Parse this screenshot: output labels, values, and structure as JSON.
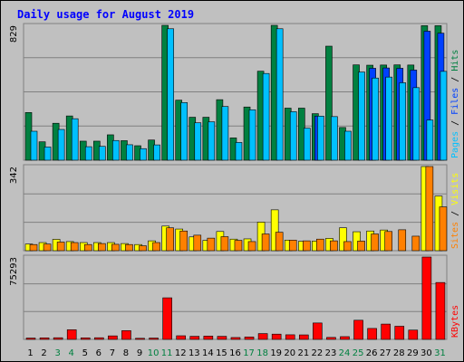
{
  "chart_data": {
    "type": "bar",
    "title": "Daily usage for August 2019",
    "categories": [
      "1",
      "2",
      "3",
      "4",
      "5",
      "6",
      "7",
      "8",
      "9",
      "10",
      "11",
      "12",
      "13",
      "14",
      "15",
      "16",
      "17",
      "18",
      "19",
      "20",
      "21",
      "22",
      "23",
      "24",
      "25",
      "26",
      "27",
      "28",
      "29",
      "30",
      "31"
    ],
    "weekend_days": [
      3,
      4,
      10,
      11,
      17,
      18,
      24,
      25,
      31
    ],
    "panels": [
      {
        "name": "hits-files-pages",
        "ymax_label": "829",
        "ymax": 829,
        "series": [
          {
            "name": "Hits",
            "color": "#008040",
            "values": [
              293,
              113,
              227,
              272,
              117,
              117,
              156,
              120,
              89,
              124,
              829,
              369,
              264,
              264,
              372,
              137,
              327,
              547,
              829,
              320,
              320,
              286,
              701,
              201,
              586,
              584,
              585,
              586,
              585,
              827,
              827
            ]
          },
          {
            "name": "Files",
            "color": "#0040ff",
            "values": [
              0,
              0,
              0,
              0,
              0,
              0,
              0,
              0,
              0,
              0,
              0,
              0,
              0,
              0,
              0,
              0,
              0,
              0,
              0,
              0,
              0,
              271,
              0,
              0,
              0,
              565,
              567,
              565,
              554,
              793,
              781
            ]
          },
          {
            "name": "Pages",
            "color": "#00c0ff",
            "values": [
              178,
              81,
              189,
              255,
              83,
              85,
              121,
              95,
              71,
              94,
              808,
              354,
              230,
              236,
              330,
              109,
              310,
              533,
              808,
              298,
              197,
              271,
              268,
              178,
              542,
              505,
              511,
              476,
              446,
              247,
              546
            ]
          }
        ],
        "axis_labels": [
          {
            "text": "Pages",
            "color": "#00c0ff"
          },
          {
            "text": " / ",
            "color": "#000000"
          },
          {
            "text": "Files",
            "color": "#0040ff"
          },
          {
            "text": " / ",
            "color": "#000000"
          },
          {
            "text": "Hits",
            "color": "#008040"
          }
        ]
      },
      {
        "name": "visits-sites",
        "ymax_label": "342",
        "ymax": 342,
        "series": [
          {
            "name": "Visits",
            "color": "#ffff00",
            "values": [
              27,
              33,
              46,
              37,
              33,
              33,
              33,
              29,
              25,
              40,
              100,
              88,
              56,
              42,
              78,
              47,
              48,
              116,
              166,
              43,
              38,
              39,
              50,
              93,
              77,
              80,
              84,
              0,
              0,
              342,
              222
            ]
          },
          {
            "name": "Sites",
            "color": "#ff8000",
            "values": [
              25,
              27,
              35,
              33,
              25,
              29,
              26,
              25,
              20,
              33,
              93,
              80,
              63,
              51,
              57,
              42,
              37,
              68,
              75,
              43,
              40,
              47,
              40,
              37,
              39,
              68,
              78,
              85,
              59,
              342,
              178
            ]
          }
        ],
        "axis_labels": [
          {
            "text": "Sites",
            "color": "#ff8000"
          },
          {
            "text": " / ",
            "color": "#000000"
          },
          {
            "text": "Visits",
            "color": "#ffff00"
          }
        ]
      },
      {
        "name": "kbytes",
        "ymax_label": "75293",
        "ymax": 75293,
        "series": [
          {
            "name": "KBytes",
            "color": "#ff0000",
            "values": [
              1200,
              1400,
              1500,
              8800,
              1400,
              1500,
              3200,
              8000,
              1000,
              1200,
              38000,
              3300,
              2800,
              3000,
              2800,
              1700,
              2200,
              5300,
              4800,
              4200,
              4100,
              15000,
              1800,
              2500,
              17500,
              10000,
              14000,
              12000,
              8500,
              75293,
              52000
            ]
          }
        ],
        "axis_labels": [
          {
            "text": "KBytes",
            "color": "#ff0000"
          }
        ]
      }
    ]
  },
  "colors": {
    "background": "#c0c0c0",
    "plot_background": "#c0c0c0",
    "title": "#0000ff",
    "weekday_label": "#000000",
    "weekend_label": "#008040"
  }
}
